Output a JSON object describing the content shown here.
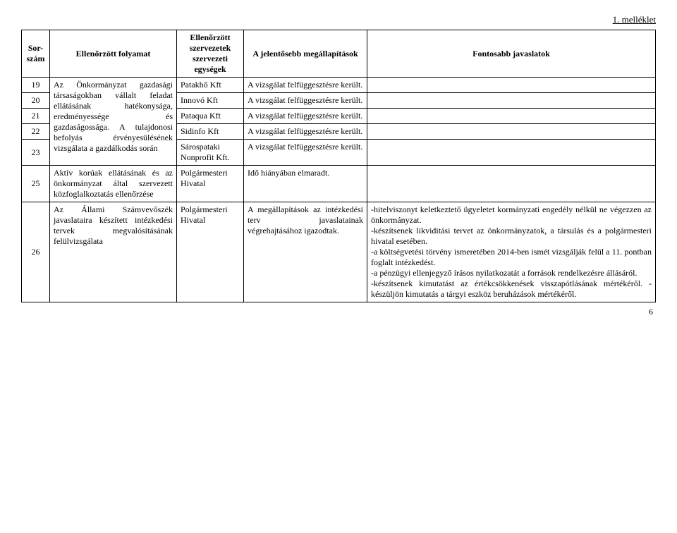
{
  "header": {
    "attachment": "1. melléklet"
  },
  "table": {
    "headers": {
      "num": "Sor-szám",
      "process": "Ellenőrzött folyamat",
      "org": "Ellenőrzött szervezetek szervezeti egységek",
      "findings": "A jelentősebb megállapítások",
      "rec": "Fontosabb javaslatok"
    },
    "process_group1": "Az Önkormányzat gazdasági társaságokban vállalt feladat ellátásának hatékonysága, eredményessége és gazdaságossága. A tulajdonosi befolyás érvényesülésének vizsgálata a gazdálkodás során",
    "rows": [
      {
        "num": "19",
        "org": "Patakhő Kft",
        "findings": "A vizsgálat felfüggesztésre került.",
        "rec": ""
      },
      {
        "num": "20",
        "org": "Innovó Kft",
        "findings": "A vizsgálat felfüggesztésre került.",
        "rec": ""
      },
      {
        "num": "21",
        "org": "Pataqua Kft",
        "findings": "A vizsgálat felfüggesztésre került.",
        "rec": ""
      },
      {
        "num": "22",
        "org": "Sidinfo Kft",
        "findings": "A vizsgálat felfüggesztésre került.",
        "rec": ""
      },
      {
        "num": "23",
        "org": "Sárospataki Nonprofit Kft.",
        "findings": "A vizsgálat felfüggesztésre került.",
        "rec": ""
      }
    ],
    "row25": {
      "num": "25",
      "process": "Aktív korúak ellátásának és az önkormányzat által szervezett közfoglalkoztatás ellenőrzése",
      "org": "Polgármesteri Hivatal",
      "findings": "Idő hiányában elmaradt.",
      "rec": ""
    },
    "row26": {
      "num": "26",
      "process": "Az Állami Számvevőszék javaslataira készített intézkedési tervek megvalósításának felülvizsgálata",
      "org": "Polgármesteri Hivatal",
      "findings": "A megállapítások az intézkedési terv javaslatainak végrehajtásához igazodtak.",
      "rec": "-hitelviszonyt keletkeztető ügyeletet kormányzati engedély nélkül ne végezzen az önkormányzat.\n-készítsenek likviditási tervet az önkormányzatok, a társulás és a polgármesteri hivatal esetében.\n-a költségvetési törvény ismeretében 2014-ben ismét vizsgálják felül a 11. pontban foglalt intézkedést.\n-a pénzügyi ellenjegyző írásos nyilatkozatát a források rendelkezésre állásáról.\n-készítsenek kimutatást az értékcsökkenések visszapótlásának mértékéről. -készüljön kimutatás a tárgyi eszköz beruházások mértékéről."
    }
  },
  "footer": {
    "page": "6"
  }
}
